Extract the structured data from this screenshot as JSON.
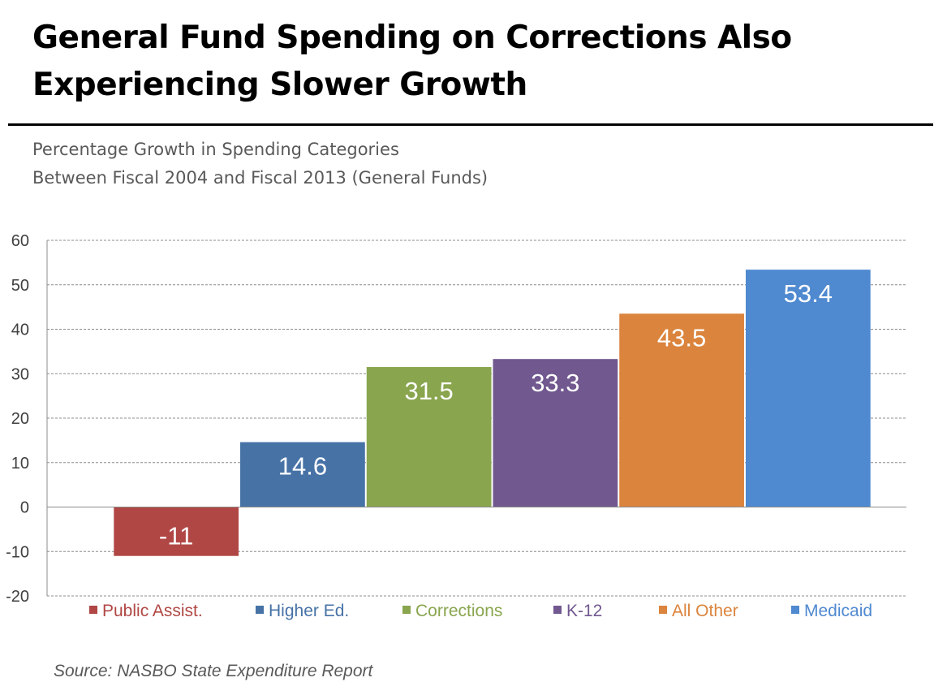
{
  "title_line1": "General Fund Spending on Corrections Also",
  "title_line2": "Experiencing Slower Growth",
  "subtitle_line1": "Percentage Growth in Spending Categories",
  "subtitle_line2": "Between Fiscal 2004 and Fiscal 2013 (General Funds)",
  "source": "Source: NASBO State Expenditure Report",
  "chart_data": {
    "type": "bar",
    "title": "Percentage Growth in Spending Categories Between Fiscal 2004 and Fiscal 2013 (General Funds)",
    "xlabel": "",
    "ylabel": "",
    "ylim": [
      -20,
      60
    ],
    "yticks": [
      60,
      50,
      40,
      30,
      20,
      10,
      0,
      -10,
      -20
    ],
    "grid": true,
    "legend_position": "bottom",
    "categories": [
      "Public Assist.",
      "Higher Ed.",
      "Corrections",
      "K-12",
      "All Other",
      "Medicaid"
    ],
    "values": [
      -11,
      14.6,
      31.5,
      33.3,
      43.5,
      53.4
    ],
    "data_labels": [
      "-11",
      "14.6",
      "31.5",
      "33.3",
      "43.5",
      "53.4"
    ],
    "colors": [
      "#B04744",
      "#4672A6",
      "#89A54E",
      "#71588F",
      "#DB843D",
      "#4F89D0"
    ]
  }
}
